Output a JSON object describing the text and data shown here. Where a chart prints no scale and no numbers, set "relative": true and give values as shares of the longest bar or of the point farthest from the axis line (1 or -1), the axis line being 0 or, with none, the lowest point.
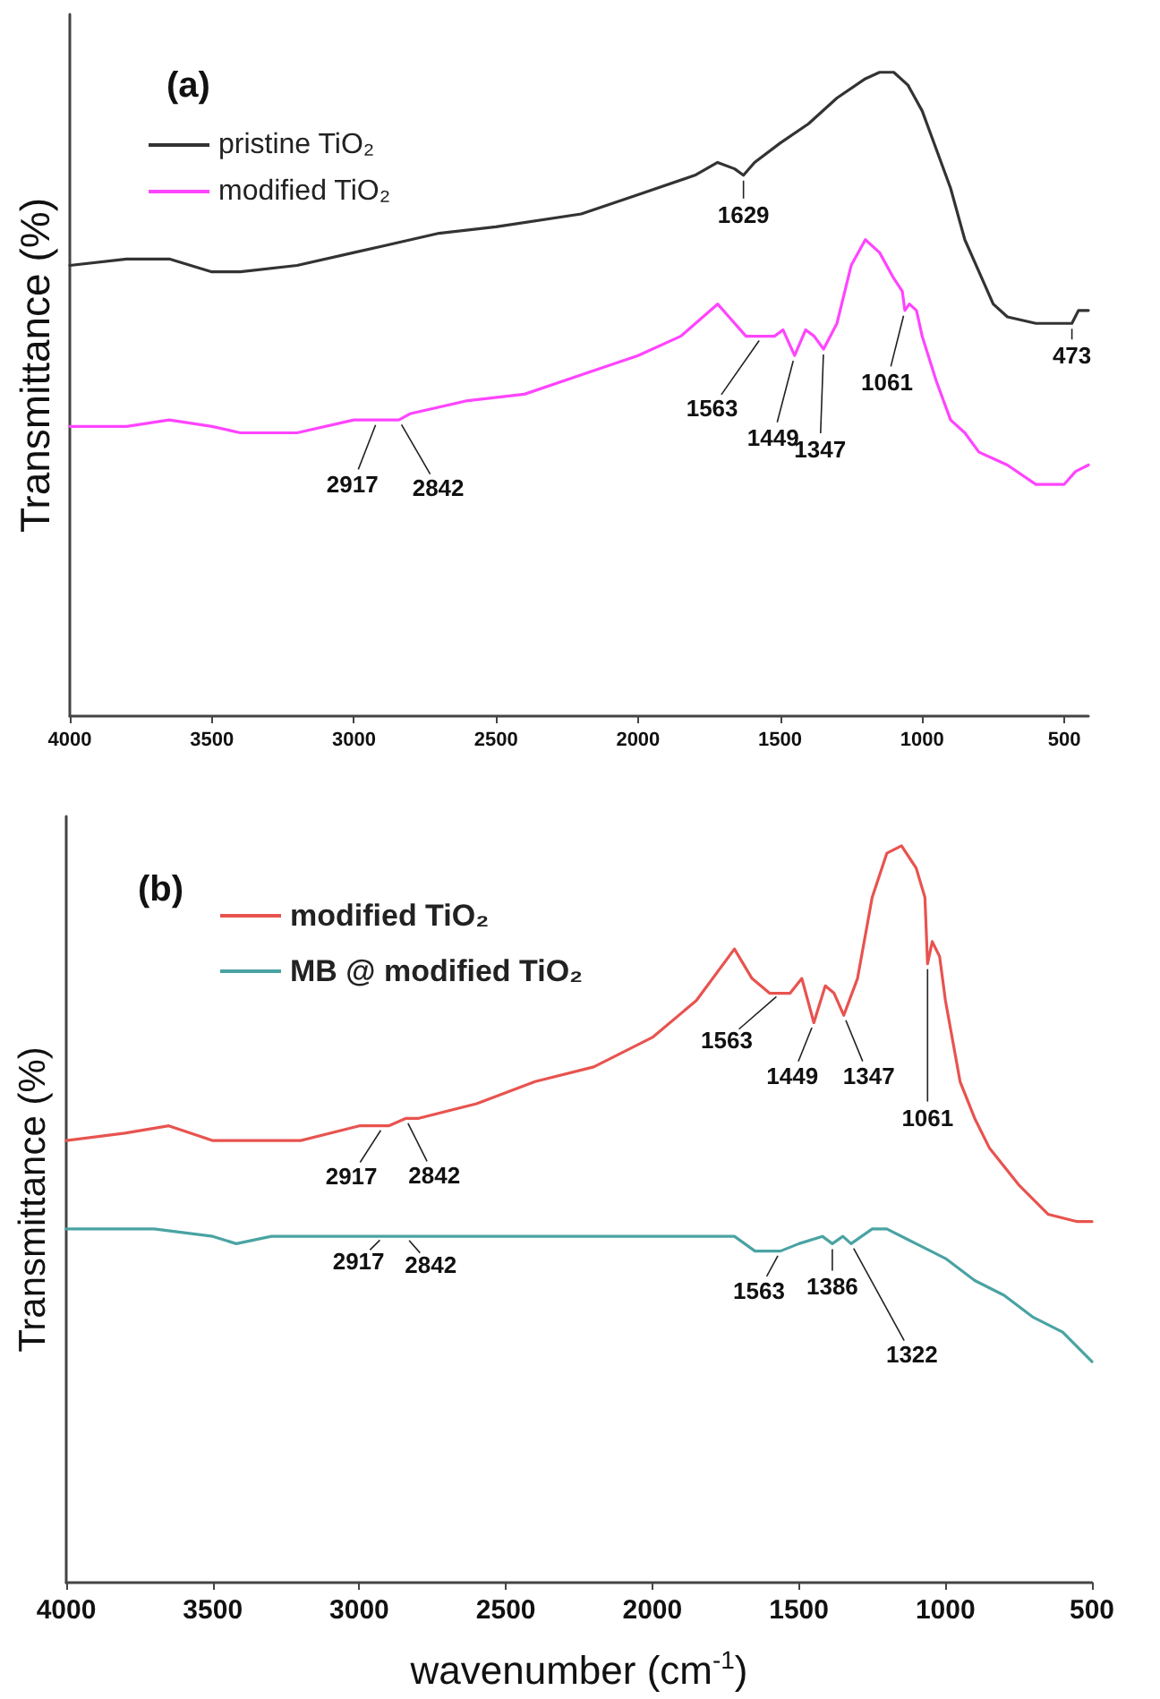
{
  "chart_data": [
    {
      "type": "line",
      "title": "(a)",
      "ylabel": "Transmittance (%)",
      "relative": true,
      "xlim": [
        4000,
        415
      ],
      "xticks": [
        4000,
        3500,
        3000,
        2500,
        2000,
        1500,
        1000,
        500
      ],
      "grid": false,
      "legend": "top left",
      "marker": "none",
      "line_style": "solid",
      "series": [
        {
          "name": "pristine TiO₂",
          "color": "#333333",
          "x": [
            4000,
            3800,
            3650,
            3500,
            3400,
            3200,
            3000,
            2900,
            2700,
            2500,
            2200,
            2000,
            1800,
            1720,
            1660,
            1629,
            1590,
            1500,
            1400,
            1300,
            1200,
            1150,
            1100,
            1050,
            1000,
            950,
            900,
            850,
            800,
            750,
            700,
            600,
            500,
            473,
            450,
            415
          ],
          "values": [
            0.7,
            0.71,
            0.71,
            0.69,
            0.69,
            0.7,
            0.72,
            0.73,
            0.75,
            0.76,
            0.78,
            0.81,
            0.84,
            0.86,
            0.85,
            0.84,
            0.86,
            0.89,
            0.92,
            0.96,
            0.99,
            1.0,
            1.0,
            0.98,
            0.94,
            0.88,
            0.82,
            0.74,
            0.69,
            0.64,
            0.62,
            0.61,
            0.61,
            0.61,
            0.63,
            0.63
          ]
        },
        {
          "name": "modified TiO₂",
          "color": "#ff44ff",
          "x": [
            4000,
            3800,
            3650,
            3500,
            3400,
            3200,
            3000,
            2950,
            2917,
            2880,
            2842,
            2800,
            2600,
            2400,
            2200,
            2000,
            1850,
            1720,
            1680,
            1620,
            1563,
            1520,
            1490,
            1449,
            1410,
            1380,
            1347,
            1300,
            1250,
            1200,
            1150,
            1100,
            1070,
            1061,
            1045,
            1020,
            1000,
            950,
            900,
            850,
            800,
            700,
            600,
            500,
            460,
            415
          ],
          "values": [
            0.45,
            0.45,
            0.46,
            0.45,
            0.44,
            0.44,
            0.46,
            0.46,
            0.46,
            0.46,
            0.46,
            0.47,
            0.49,
            0.5,
            0.53,
            0.56,
            0.59,
            0.64,
            0.62,
            0.59,
            0.59,
            0.59,
            0.6,
            0.56,
            0.6,
            0.59,
            0.57,
            0.61,
            0.7,
            0.74,
            0.72,
            0.68,
            0.66,
            0.63,
            0.64,
            0.63,
            0.59,
            0.52,
            0.46,
            0.44,
            0.41,
            0.39,
            0.36,
            0.36,
            0.38,
            0.39
          ]
        }
      ],
      "annotations": [
        {
          "text": "1629",
          "x": 1629,
          "y": 0.84
        },
        {
          "text": "473",
          "x": 473,
          "y": 0.61
        },
        {
          "text": "1061",
          "x": 1061,
          "y": 0.63
        },
        {
          "text": "1563",
          "x": 1563,
          "y": 0.59
        },
        {
          "text": "1449",
          "x": 1449,
          "y": 0.56
        },
        {
          "text": "1347",
          "x": 1347,
          "y": 0.57
        },
        {
          "text": "2917",
          "x": 2917,
          "y": 0.46
        },
        {
          "text": "2842",
          "x": 2842,
          "y": 0.46
        }
      ]
    },
    {
      "type": "line",
      "title": "(b)",
      "xlabel": "wavenumber (cm$^{-1}$)",
      "ylabel": "Transmittance (%)",
      "relative": true,
      "xlim": [
        4000,
        500
      ],
      "xticks": [
        4000,
        3500,
        3000,
        2500,
        2000,
        1500,
        1000,
        500
      ],
      "grid": false,
      "legend": "top left",
      "marker": "none",
      "line_style": "solid",
      "series": [
        {
          "name": "modified TiO₂",
          "color": "#e8534f",
          "x": [
            4000,
            3800,
            3650,
            3500,
            3400,
            3200,
            3000,
            2917,
            2900,
            2842,
            2800,
            2600,
            2400,
            2200,
            2000,
            1850,
            1720,
            1660,
            1600,
            1563,
            1530,
            1490,
            1449,
            1410,
            1380,
            1347,
            1300,
            1250,
            1200,
            1150,
            1100,
            1070,
            1061,
            1045,
            1020,
            1000,
            950,
            900,
            850,
            750,
            650,
            550,
            500
          ],
          "values": [
            0.6,
            0.61,
            0.62,
            0.6,
            0.6,
            0.6,
            0.62,
            0.62,
            0.62,
            0.63,
            0.63,
            0.65,
            0.68,
            0.7,
            0.74,
            0.79,
            0.86,
            0.82,
            0.8,
            0.8,
            0.8,
            0.82,
            0.76,
            0.81,
            0.8,
            0.77,
            0.82,
            0.93,
            0.99,
            1.0,
            0.97,
            0.93,
            0.84,
            0.87,
            0.85,
            0.79,
            0.68,
            0.63,
            0.59,
            0.54,
            0.5,
            0.49,
            0.49
          ]
        },
        {
          "name": "MB @ modified TiO₂",
          "color": "#4aa3a3",
          "x": [
            4000,
            3700,
            3500,
            3420,
            3300,
            3000,
            2917,
            2842,
            2500,
            2000,
            1720,
            1650,
            1600,
            1563,
            1500,
            1420,
            1386,
            1350,
            1322,
            1250,
            1200,
            1100,
            1000,
            900,
            800,
            700,
            600,
            500
          ],
          "values": [
            0.48,
            0.48,
            0.47,
            0.46,
            0.47,
            0.47,
            0.47,
            0.47,
            0.47,
            0.47,
            0.47,
            0.45,
            0.45,
            0.45,
            0.46,
            0.47,
            0.46,
            0.47,
            0.46,
            0.48,
            0.48,
            0.46,
            0.44,
            0.41,
            0.39,
            0.36,
            0.34,
            0.3
          ]
        }
      ],
      "annotations": [
        {
          "text": "1563",
          "x": 1563,
          "y": 0.8
        },
        {
          "text": "1449",
          "x": 1449,
          "y": 0.76
        },
        {
          "text": "1347",
          "x": 1347,
          "y": 0.77
        },
        {
          "text": "1061",
          "x": 1061,
          "y": 0.84
        },
        {
          "text": "2917",
          "x": 2917,
          "y": 0.62
        },
        {
          "text": "2842",
          "x": 2842,
          "y": 0.63
        },
        {
          "text": "2917",
          "x": 2917,
          "y": 0.47
        },
        {
          "text": "2842",
          "x": 2842,
          "y": 0.47
        },
        {
          "text": "1563",
          "x": 1563,
          "y": 0.45
        },
        {
          "text": "1386",
          "x": 1386,
          "y": 0.46
        },
        {
          "text": "1322",
          "x": 1322,
          "y": 0.46
        }
      ]
    }
  ]
}
